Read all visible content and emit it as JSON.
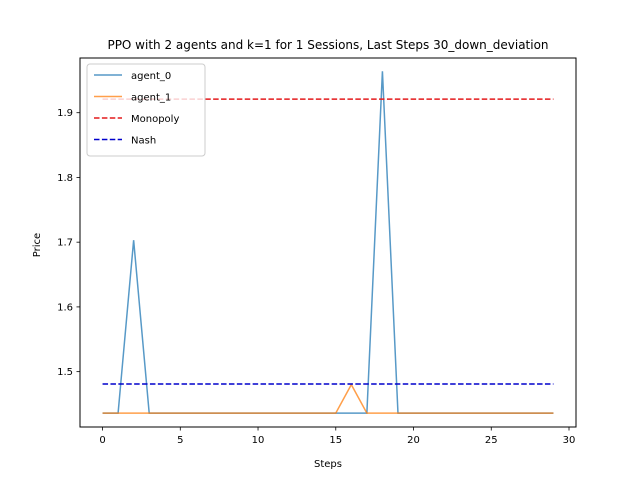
{
  "chart_data": {
    "type": "line",
    "title": "PPO with 2 agents and k=1 for 1 Sessions, Last Steps 30_down_deviation",
    "xlabel": "Steps",
    "ylabel": "Price",
    "xlim": [
      -1.45,
      30.45
    ],
    "ylim": [
      1.4145,
      1.9845
    ],
    "xticks": [
      0,
      5,
      10,
      15,
      20,
      25,
      30
    ],
    "yticks": [
      1.5,
      1.6,
      1.7,
      1.8,
      1.9
    ],
    "yticks_labels": [
      "1.5",
      "1.6",
      "1.7",
      "1.8",
      "1.9"
    ],
    "grid": false,
    "legend_position": "upper-left",
    "x": [
      0,
      1,
      2,
      3,
      4,
      5,
      6,
      7,
      8,
      9,
      10,
      11,
      12,
      13,
      14,
      15,
      16,
      17,
      18,
      19,
      20,
      21,
      22,
      23,
      24,
      25,
      26,
      27,
      28,
      29
    ],
    "series": [
      {
        "name": "agent_0",
        "color": "#1f77b4",
        "style": "solid",
        "values": [
          1.436,
          1.436,
          1.703,
          1.436,
          1.436,
          1.436,
          1.436,
          1.436,
          1.436,
          1.436,
          1.436,
          1.436,
          1.436,
          1.436,
          1.436,
          1.436,
          1.436,
          1.436,
          1.964,
          1.436,
          1.436,
          1.436,
          1.436,
          1.436,
          1.436,
          1.436,
          1.436,
          1.436,
          1.436,
          1.436
        ]
      },
      {
        "name": "agent_1",
        "color": "#ff7f0e",
        "style": "solid",
        "values": [
          1.436,
          1.436,
          1.436,
          1.436,
          1.436,
          1.436,
          1.436,
          1.436,
          1.436,
          1.436,
          1.436,
          1.436,
          1.436,
          1.436,
          1.436,
          1.436,
          1.48,
          1.436,
          1.436,
          1.436,
          1.436,
          1.436,
          1.436,
          1.436,
          1.436,
          1.436,
          1.436,
          1.436,
          1.436,
          1.436
        ]
      },
      {
        "name": "Monopoly",
        "color": "#e41a1c",
        "style": "dashed",
        "values": [
          1.921,
          1.921,
          1.921,
          1.921,
          1.921,
          1.921,
          1.921,
          1.921,
          1.921,
          1.921,
          1.921,
          1.921,
          1.921,
          1.921,
          1.921,
          1.921,
          1.921,
          1.921,
          1.921,
          1.921,
          1.921,
          1.921,
          1.921,
          1.921,
          1.921,
          1.921,
          1.921,
          1.921,
          1.921,
          1.921
        ]
      },
      {
        "name": "Nash",
        "color": "#0000cc",
        "style": "dashed",
        "values": [
          1.481,
          1.481,
          1.481,
          1.481,
          1.481,
          1.481,
          1.481,
          1.481,
          1.481,
          1.481,
          1.481,
          1.481,
          1.481,
          1.481,
          1.481,
          1.481,
          1.481,
          1.481,
          1.481,
          1.481,
          1.481,
          1.481,
          1.481,
          1.481,
          1.481,
          1.481,
          1.481,
          1.481,
          1.481,
          1.481
        ]
      }
    ]
  }
}
